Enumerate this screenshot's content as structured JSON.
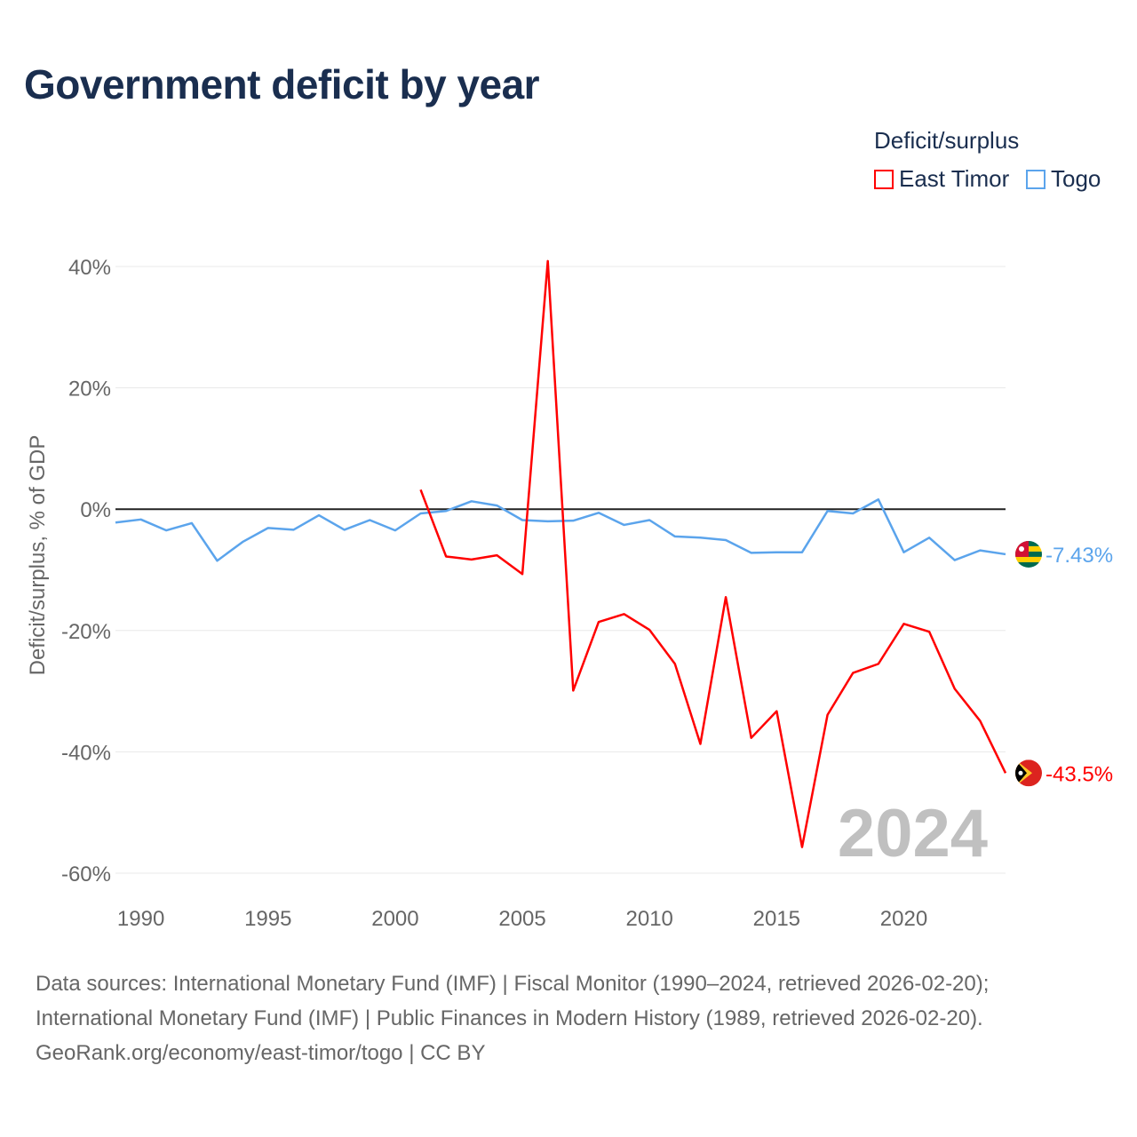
{
  "chart_data": {
    "type": "line",
    "title": "Government deficit by year",
    "ylabel": "Deficit/surplus, % of GDP",
    "xlabel": "",
    "xlim": [
      1989,
      2024
    ],
    "ylim": [
      -60,
      40
    ],
    "yticks": [
      40,
      20,
      0,
      -20,
      -40,
      -60
    ],
    "ytick_labels": [
      "40%",
      "20%",
      "0%",
      "-20%",
      "-40%",
      "-60%"
    ],
    "xticks": [
      1990,
      1995,
      2000,
      2005,
      2010,
      2015,
      2020
    ],
    "xtick_labels": [
      "1990",
      "1995",
      "2000",
      "2005",
      "2010",
      "2015",
      "2020"
    ],
    "grid": true,
    "legend_title": "Deficit/surplus",
    "legend_position": "top-right",
    "year_watermark": "2024",
    "series": [
      {
        "name": "East Timor",
        "color": "#ff0000",
        "end_label": "-43.5%",
        "x": [
          2001,
          2002,
          2003,
          2004,
          2005,
          2006,
          2007,
          2008,
          2009,
          2010,
          2011,
          2012,
          2013,
          2014,
          2015,
          2016,
          2017,
          2018,
          2019,
          2020,
          2021,
          2022,
          2023,
          2024
        ],
        "values": [
          3.2,
          -7.8,
          -8.3,
          -7.6,
          -10.7,
          40.9,
          -29.9,
          -18.6,
          -17.3,
          -19.9,
          -25.5,
          -38.7,
          -14.5,
          -37.7,
          -33.3,
          -55.7,
          -33.9,
          -27.0,
          -25.5,
          -18.9,
          -20.2,
          -29.6,
          -34.9,
          -43.5
        ]
      },
      {
        "name": "Togo",
        "color": "#5ba4ec",
        "end_label": "-7.43%",
        "x": [
          1989,
          1990,
          1991,
          1992,
          1993,
          1994,
          1995,
          1996,
          1997,
          1998,
          1999,
          2000,
          2001,
          2002,
          2003,
          2004,
          2005,
          2006,
          2007,
          2008,
          2009,
          2010,
          2011,
          2012,
          2013,
          2014,
          2015,
          2016,
          2017,
          2018,
          2019,
          2020,
          2021,
          2022,
          2023,
          2024
        ],
        "values": [
          -2.2,
          -1.7,
          -3.5,
          -2.3,
          -8.5,
          -5.4,
          -3.1,
          -3.4,
          -1.0,
          -3.4,
          -1.8,
          -3.5,
          -0.7,
          -0.3,
          1.3,
          0.6,
          -1.8,
          -2.0,
          -1.9,
          -0.6,
          -2.6,
          -1.8,
          -4.5,
          -4.7,
          -5.1,
          -7.2,
          -7.1,
          -7.1,
          -0.3,
          -0.7,
          1.6,
          -7.1,
          -4.7,
          -8.4,
          -6.8,
          -7.43
        ]
      }
    ]
  },
  "sources": [
    "Data sources: International Monetary Fund (IMF) | Fiscal Monitor (1990–2024, retrieved 2026-02-20);",
    "International Monetary Fund (IMF) | Public Finances in Modern History (1989, retrieved 2026-02-20).",
    "GeoRank.org/economy/east-timor/togo | CC BY"
  ]
}
